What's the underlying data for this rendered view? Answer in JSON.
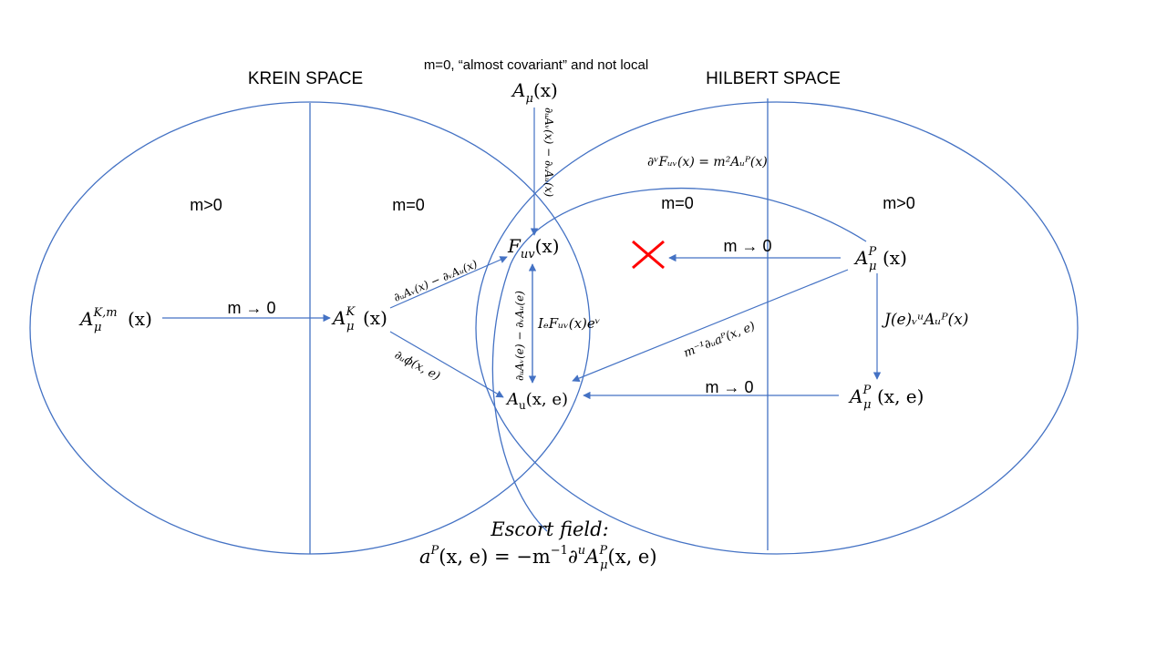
{
  "labels": {
    "krein_space": "KREIN SPACE",
    "hilbert_space": "HILBERT SPACE",
    "top_note": "m=0, “almost covariant” and not local",
    "krein_massive": "m>0",
    "krein_massless": "m=0",
    "hilbert_massless": "m=0",
    "hilbert_massive": "m>0",
    "limit_krein": "m → 0",
    "limit_hilbert_top": "m → 0",
    "limit_hilbert_bottom": "m → 0",
    "escort_title": "Escort field:"
  },
  "nodes": {
    "a_mu": {
      "base": "A",
      "sub": "μ",
      "arg": "(x)"
    },
    "f_uv": {
      "base": "F",
      "sub": "uv",
      "arg": "(x)"
    },
    "a_k_m": {
      "base": "A",
      "sub": "μ",
      "sup": "K,m",
      "arg": "(x)"
    },
    "a_k": {
      "base": "A",
      "sub": "μ",
      "sup": "K",
      "arg": "(x)"
    },
    "a_u_xe": {
      "base": "A",
      "sub": "u",
      "arg": "(x, e)"
    },
    "a_p": {
      "base": "A",
      "sub": "μ",
      "sup": "P",
      "arg": "(x)"
    },
    "a_p_xe": {
      "base": "A",
      "sub": "μ",
      "sup": "P",
      "arg": "(x, e)"
    }
  },
  "edge_labels": {
    "a_to_f": "∂ᵤAᵥ(x) − ∂ᵥAᵤ(x)",
    "k_to_f": "∂ᵤAᵥ(x) − ∂ᵥAᵤ(x)",
    "k_to_axe": "∂ᵤϕ(x, e)",
    "axe_to_f": "∂ᵤAᵥ(e) − ∂ᵥAᵤ(e)",
    "f_to_axe": "IₑFᵤᵥ(x)eᵛ",
    "proca_eq": "∂ᵛFᵤᵥ(x) = m²Aᵤᴾ(x)",
    "ap_to_axe": "m⁻¹∂ᵤaᴾ(x, e)",
    "ap_to_apxe": "J(e)ᵥᵘAᵤᴾ(x)"
  },
  "escort_formula": {
    "lhs_base": "a",
    "lhs_sup": "P",
    "lhs_arg": "(x, e)",
    "rhs_prefix": " = −m",
    "rhs_exp": "−1",
    "rhs_op": "∂",
    "rhs_op_sup": "u",
    "rhs_base": "A",
    "rhs_sup": "P",
    "rhs_sub": "μ",
    "rhs_arg": "(x, e)"
  },
  "colors": {
    "shape_stroke": "#4472c4",
    "arrow": "#4472c4",
    "cross": "#ff0000",
    "text": "#000000"
  },
  "icons": {
    "forbidden_limit": "red-x-cross-icon"
  }
}
